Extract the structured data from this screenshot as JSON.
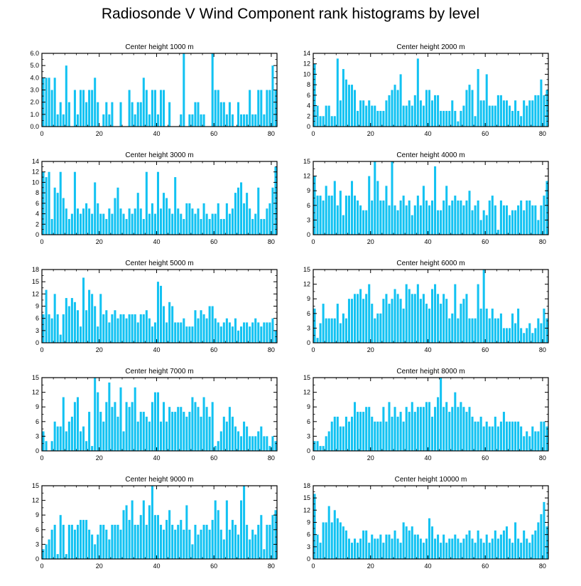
{
  "title": "Radiosonde V Wind Component rank histograms by level",
  "colors": {
    "bar": "#12c2f2",
    "axis": "#000000",
    "background": "#ffffff"
  },
  "chart_data": [
    {
      "type": "bar",
      "title": "Center height 1000 m",
      "xlim": [
        0,
        82
      ],
      "ylim": [
        0,
        6
      ],
      "xticks": [
        0,
        20,
        40,
        60,
        80
      ],
      "yticks": [
        0,
        1,
        2,
        3,
        4,
        5,
        6
      ],
      "ytick_labels": [
        "0.0",
        "1.0",
        "2.0",
        "3.0",
        "4.0",
        "5.0",
        "6.0"
      ],
      "values": [
        4,
        4,
        4,
        3,
        4,
        1,
        2,
        1,
        5,
        2,
        0,
        3,
        1,
        3,
        3,
        2,
        3,
        3,
        4,
        2,
        0,
        1,
        2,
        1,
        2,
        0,
        0,
        2,
        0,
        0,
        3,
        2,
        1,
        2,
        2,
        4,
        3,
        1,
        3,
        3,
        1,
        3,
        3,
        0,
        2,
        0,
        0,
        0,
        1,
        6,
        0,
        1,
        1,
        2,
        2,
        1,
        1,
        0,
        0,
        6,
        3,
        3,
        2,
        2,
        1,
        2,
        1,
        0,
        2,
        1,
        1,
        1,
        3,
        1,
        1,
        3,
        3,
        1,
        3,
        3,
        5,
        3
      ]
    },
    {
      "type": "bar",
      "title": "Center height 2000 m",
      "xlim": [
        0,
        82
      ],
      "ylim": [
        0,
        14
      ],
      "xticks": [
        0,
        20,
        40,
        60,
        80
      ],
      "yticks": [
        0,
        2,
        4,
        6,
        8,
        10,
        12,
        14
      ],
      "values": [
        12,
        4,
        2,
        2,
        4,
        4,
        2,
        2,
        13,
        5,
        11,
        9,
        8,
        8,
        7,
        3,
        5,
        5,
        4,
        5,
        4,
        4,
        3,
        3,
        3,
        5,
        6,
        7,
        8,
        7,
        10,
        4,
        4,
        5,
        4,
        6,
        13,
        5,
        4,
        7,
        7,
        5,
        6,
        6,
        3,
        3,
        3,
        3,
        5,
        3,
        1,
        3,
        4,
        7,
        8,
        7,
        2,
        11,
        5,
        5,
        10,
        4,
        4,
        4,
        6,
        6,
        5,
        5,
        4,
        3,
        5,
        3,
        2,
        5,
        4,
        5,
        5,
        6,
        6,
        9,
        6,
        7
      ]
    },
    {
      "type": "bar",
      "title": "Center height 3000 m",
      "xlim": [
        0,
        82
      ],
      "ylim": [
        0,
        14
      ],
      "xticks": [
        0,
        20,
        40,
        60,
        80
      ],
      "yticks": [
        0,
        2,
        4,
        6,
        8,
        10,
        12,
        14
      ],
      "values": [
        12,
        11,
        12,
        3,
        9,
        8,
        12,
        7,
        5,
        3,
        4,
        12,
        5,
        4,
        5,
        6,
        5,
        4,
        10,
        6,
        4,
        4,
        3,
        5,
        4,
        7,
        9,
        5,
        4,
        3,
        5,
        4,
        5,
        8,
        5,
        3,
        12,
        4,
        6,
        4,
        12,
        5,
        8,
        7,
        5,
        4,
        11,
        5,
        4,
        3,
        6,
        6,
        5,
        4,
        5,
        3,
        6,
        4,
        3,
        4,
        4,
        6,
        3,
        3,
        6,
        4,
        5,
        8,
        9,
        10,
        6,
        8,
        5,
        3,
        4,
        9,
        3,
        3,
        5,
        6,
        9,
        13
      ]
    },
    {
      "type": "bar",
      "title": "Center height 4000 m",
      "xlim": [
        0,
        82
      ],
      "ylim": [
        0,
        15
      ],
      "xticks": [
        0,
        20,
        40,
        60,
        80
      ],
      "yticks": [
        0,
        3,
        6,
        9,
        12,
        15
      ],
      "values": [
        12,
        8,
        8,
        7,
        10,
        8,
        8,
        11,
        6,
        9,
        4,
        8,
        8,
        11,
        8,
        7,
        6,
        5,
        5,
        12,
        7,
        15,
        11,
        7,
        7,
        10,
        6,
        15,
        6,
        5,
        7,
        8,
        6,
        7,
        4,
        6,
        8,
        6,
        10,
        7,
        6,
        7,
        14,
        5,
        5,
        7,
        10,
        6,
        7,
        8,
        7,
        7,
        6,
        7,
        9,
        5,
        6,
        7,
        3,
        5,
        4,
        7,
        8,
        6,
        1,
        7,
        6,
        6,
        4,
        5,
        5,
        6,
        7,
        5,
        7,
        7,
        6,
        6,
        3,
        6,
        8,
        11
      ]
    },
    {
      "type": "bar",
      "title": "Center height 5000 m",
      "xlim": [
        0,
        82
      ],
      "ylim": [
        0,
        18
      ],
      "xticks": [
        0,
        20,
        40,
        60,
        80
      ],
      "yticks": [
        0,
        3,
        6,
        9,
        12,
        15,
        18
      ],
      "values": [
        7,
        13,
        7,
        6,
        12,
        7,
        2,
        7,
        11,
        9,
        11,
        10,
        8,
        4,
        16,
        8,
        13,
        12,
        9,
        4,
        12,
        7,
        8,
        5,
        7,
        8,
        6,
        7,
        7,
        6,
        7,
        7,
        7,
        5,
        7,
        7,
        8,
        6,
        4,
        5,
        15,
        14,
        9,
        5,
        10,
        9,
        5,
        5,
        5,
        6,
        4,
        4,
        4,
        8,
        6,
        8,
        7,
        6,
        9,
        9,
        6,
        5,
        4,
        5,
        6,
        5,
        4,
        6,
        3,
        4,
        5,
        5,
        4,
        5,
        6,
        5,
        4,
        5,
        5,
        5,
        6,
        3
      ]
    },
    {
      "type": "bar",
      "title": "Center height 6000 m",
      "xlim": [
        0,
        82
      ],
      "ylim": [
        0,
        15
      ],
      "xticks": [
        0,
        20,
        40,
        60,
        80
      ],
      "yticks": [
        0,
        3,
        6,
        9,
        12,
        15
      ],
      "values": [
        7,
        1,
        4,
        8,
        5,
        5,
        5,
        5,
        8,
        4,
        6,
        5,
        9,
        9,
        10,
        10,
        11,
        9,
        10,
        12,
        8,
        5,
        6,
        6,
        9,
        10,
        8,
        9,
        11,
        10,
        9,
        7,
        12,
        11,
        10,
        10,
        12,
        9,
        10,
        8,
        7,
        11,
        12,
        10,
        8,
        10,
        9,
        5,
        6,
        12,
        5,
        8,
        9,
        10,
        5,
        5,
        5,
        12,
        7,
        15,
        7,
        5,
        7,
        5,
        5,
        6,
        3,
        3,
        3,
        6,
        4,
        7,
        3,
        2,
        3,
        4,
        2,
        3,
        5,
        4,
        7,
        5
      ]
    },
    {
      "type": "bar",
      "title": "Center height 7000 m",
      "xlim": [
        0,
        82
      ],
      "ylim": [
        0,
        15
      ],
      "xticks": [
        0,
        20,
        40,
        60,
        80
      ],
      "yticks": [
        0,
        3,
        6,
        9,
        12,
        15
      ],
      "values": [
        4,
        2,
        0,
        2,
        6,
        5,
        5,
        11,
        4,
        6,
        7,
        10,
        11,
        4,
        5,
        2,
        8,
        1,
        15,
        12,
        8,
        6,
        10,
        14,
        9,
        10,
        7,
        13,
        4,
        10,
        9,
        10,
        13,
        6,
        8,
        8,
        7,
        6,
        10,
        12,
        12,
        6,
        10,
        6,
        9,
        8,
        8,
        9,
        9,
        8,
        7,
        8,
        11,
        10,
        9,
        7,
        11,
        9,
        7,
        10,
        1,
        2,
        4,
        7,
        6,
        9,
        7,
        5,
        4,
        3,
        6,
        5,
        3,
        3,
        3,
        4,
        5,
        3,
        3,
        1,
        3,
        2
      ]
    },
    {
      "type": "bar",
      "title": "Center height 8000 m",
      "xlim": [
        0,
        82
      ],
      "ylim": [
        0,
        15
      ],
      "xticks": [
        0,
        20,
        40,
        60,
        80
      ],
      "yticks": [
        0,
        3,
        6,
        9,
        12,
        15
      ],
      "values": [
        2,
        2,
        1,
        1,
        3,
        4,
        6,
        7,
        7,
        5,
        5,
        7,
        6,
        7,
        10,
        8,
        8,
        8,
        9,
        9,
        7,
        6,
        6,
        6,
        9,
        6,
        10,
        7,
        9,
        7,
        8,
        6,
        9,
        8,
        10,
        8,
        9,
        9,
        9,
        10,
        10,
        7,
        9,
        11,
        15,
        9,
        10,
        8,
        9,
        12,
        9,
        10,
        9,
        8,
        9,
        7,
        6,
        6,
        7,
        5,
        6,
        5,
        5,
        7,
        5,
        6,
        8,
        6,
        6,
        6,
        6,
        6,
        5,
        3,
        4,
        3,
        5,
        4,
        4,
        6,
        6,
        5
      ]
    },
    {
      "type": "bar",
      "title": "Center height 9000 m",
      "xlim": [
        0,
        82
      ],
      "ylim": [
        0,
        15
      ],
      "xticks": [
        0,
        20,
        40,
        60,
        80
      ],
      "yticks": [
        0,
        3,
        6,
        9,
        12,
        15
      ],
      "values": [
        2,
        3,
        4,
        6,
        7,
        1,
        9,
        7,
        1,
        7,
        7,
        6,
        7,
        8,
        8,
        8,
        6,
        5,
        3,
        5,
        7,
        7,
        6,
        4,
        7,
        7,
        7,
        6,
        10,
        11,
        8,
        12,
        7,
        7,
        9,
        12,
        7,
        11,
        15,
        9,
        9,
        7,
        6,
        8,
        10,
        7,
        6,
        7,
        8,
        6,
        11,
        6,
        3,
        7,
        5,
        6,
        7,
        7,
        6,
        8,
        12,
        10,
        6,
        4,
        12,
        6,
        8,
        7,
        5,
        12,
        15,
        7,
        4,
        6,
        5,
        7,
        9,
        2,
        7,
        7,
        9,
        10
      ]
    },
    {
      "type": "bar",
      "title": "Center height 10000 m",
      "xlim": [
        0,
        82
      ],
      "ylim": [
        0,
        18
      ],
      "xticks": [
        0,
        20,
        40,
        60,
        80
      ],
      "yticks": [
        0,
        3,
        6,
        9,
        12,
        15,
        18
      ],
      "values": [
        16,
        6,
        4,
        9,
        9,
        13,
        9,
        12,
        10,
        9,
        8,
        7,
        5,
        4,
        5,
        4,
        5,
        7,
        7,
        4,
        6,
        5,
        5,
        6,
        4,
        6,
        6,
        5,
        7,
        5,
        4,
        9,
        8,
        7,
        8,
        6,
        6,
        5,
        4,
        5,
        10,
        8,
        5,
        6,
        4,
        6,
        4,
        5,
        5,
        6,
        5,
        4,
        5,
        6,
        7,
        5,
        4,
        7,
        5,
        4,
        6,
        4,
        5,
        7,
        5,
        6,
        7,
        8,
        5,
        4,
        9,
        5,
        4,
        7,
        5,
        4,
        6,
        7,
        9,
        11,
        14,
        8
      ]
    }
  ]
}
